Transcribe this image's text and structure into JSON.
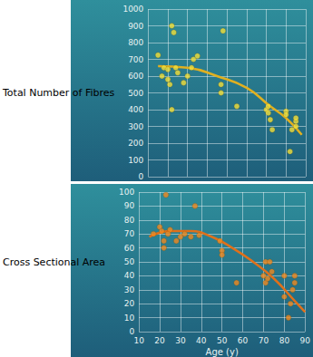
{
  "chart_data": [
    {
      "type": "scatter",
      "y_label": "Total Number of Fibres",
      "xlim": [
        10,
        90
      ],
      "xticks": [
        10,
        20,
        30,
        40,
        50,
        60,
        70,
        80,
        90
      ],
      "ylim": [
        0,
        1000
      ],
      "yticks": [
        0,
        100,
        200,
        300,
        400,
        500,
        600,
        700,
        800,
        900,
        1000
      ],
      "grid": true,
      "tick_labels": "y",
      "series": [
        {
          "type": "scatter",
          "color": "#f2e03a",
          "marker": "circle",
          "x": [
            15,
            17,
            18,
            20,
            21,
            22,
            22,
            23,
            20,
            24,
            25,
            28,
            30,
            33,
            35,
            32,
            48,
            47,
            47,
            55,
            70,
            71,
            72,
            73,
            71,
            80,
            80,
            82,
            85,
            85,
            85,
            83
          ],
          "values": [
            725,
            600,
            650,
            640,
            550,
            400,
            900,
            860,
            580,
            650,
            620,
            560,
            600,
            700,
            720,
            650,
            870,
            550,
            500,
            420,
            400,
            380,
            340,
            280,
            420,
            390,
            370,
            150,
            330,
            300,
            350,
            280
          ]
        },
        {
          "type": "line",
          "color": "#e0b020",
          "line_style": "solid",
          "x": [
            15,
            30,
            45,
            60,
            72,
            80,
            88
          ],
          "values": [
            660,
            650,
            600,
            530,
            420,
            350,
            250
          ]
        }
      ]
    },
    {
      "type": "scatter",
      "y_label": "Cross Sectional Area",
      "x_label": "Age (y)",
      "xlim": [
        10,
        90
      ],
      "xticks": [
        10,
        20,
        30,
        40,
        50,
        60,
        70,
        80,
        90
      ],
      "ylim": [
        0,
        100
      ],
      "yticks": [
        0,
        10,
        20,
        30,
        40,
        50,
        60,
        70,
        80,
        90,
        100
      ],
      "grid": true,
      "series": [
        {
          "type": "scatter",
          "color": "#f08a20",
          "marker": "circle",
          "x": [
            17,
            20,
            22,
            22,
            23,
            25,
            21,
            24,
            28,
            30,
            32,
            35,
            37,
            39,
            49,
            50,
            50,
            57,
            70,
            71,
            73,
            71,
            74,
            72,
            80,
            80,
            82,
            83,
            85,
            85,
            84
          ],
          "values": [
            70,
            75,
            65,
            60,
            98,
            73,
            72,
            70,
            65,
            68,
            70,
            68,
            90,
            69,
            65,
            58,
            55,
            35,
            40,
            50,
            50,
            35,
            43,
            38,
            40,
            25,
            10,
            20,
            35,
            40,
            30
          ]
        },
        {
          "type": "line",
          "color": "#e0701a",
          "line_style": "solid",
          "x": [
            15,
            25,
            35,
            45,
            55,
            65,
            75,
            85,
            90
          ],
          "values": [
            68,
            72,
            72,
            68,
            60,
            50,
            38,
            22,
            14
          ]
        }
      ]
    }
  ]
}
